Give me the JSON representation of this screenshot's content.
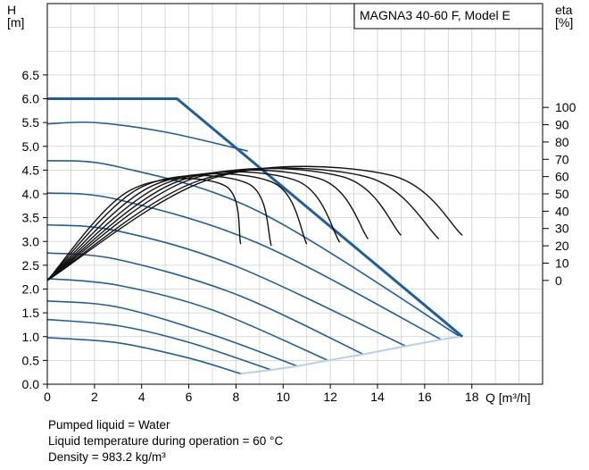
{
  "chart_data": {
    "type": "line",
    "title": "MAGNA3 40-60 F, Model E",
    "xlabel": "Q [m³/h]",
    "ylabel": "H [m]",
    "y2label": "eta [%]",
    "xlim": [
      0,
      21
    ],
    "ylim": [
      0,
      8
    ],
    "y2lim": [
      -60,
      160
    ],
    "x_ticks": [
      "0",
      "2",
      "4",
      "6",
      "8",
      "10",
      "12",
      "14",
      "16",
      "18"
    ],
    "y_ticks": [
      "0.0",
      "0.5",
      "1.0",
      "1.5",
      "2.0",
      "2.5",
      "3.0",
      "3.5",
      "4.0",
      "4.5",
      "5.0",
      "5.5",
      "6.0",
      "6.5"
    ],
    "y2_ticks": [
      "0",
      "10",
      "20",
      "30",
      "40",
      "50",
      "60",
      "70",
      "80",
      "90",
      "100"
    ],
    "series": [
      {
        "kind": "max-curve",
        "points": [
          [
            0,
            6.0
          ],
          [
            5.5,
            6.0
          ],
          [
            17.6,
            1.0
          ]
        ]
      },
      {
        "kind": "qh",
        "points": [
          [
            0,
            0.98
          ],
          [
            3,
            0.87
          ],
          [
            6,
            0.55
          ],
          [
            8.2,
            0.22
          ]
        ]
      },
      {
        "kind": "qh",
        "points": [
          [
            0,
            1.36
          ],
          [
            3,
            1.23
          ],
          [
            6,
            0.88
          ],
          [
            9.5,
            0.3
          ]
        ]
      },
      {
        "kind": "qh",
        "points": [
          [
            0,
            1.75
          ],
          [
            3,
            1.62
          ],
          [
            7,
            1.04
          ],
          [
            10.6,
            0.38
          ]
        ]
      },
      {
        "kind": "qh",
        "points": [
          [
            0,
            2.22
          ],
          [
            3,
            2.08
          ],
          [
            7,
            1.56
          ],
          [
            11.9,
            0.5
          ]
        ]
      },
      {
        "kind": "qh",
        "points": [
          [
            0,
            2.76
          ],
          [
            3,
            2.62
          ],
          [
            8,
            1.89
          ],
          [
            13.4,
            0.63
          ]
        ]
      },
      {
        "kind": "qh",
        "points": [
          [
            0,
            3.35
          ],
          [
            3,
            3.22
          ],
          [
            8,
            2.48
          ],
          [
            15.2,
            0.8
          ]
        ]
      },
      {
        "kind": "qh",
        "points": [
          [
            0,
            4.02
          ],
          [
            3,
            3.88
          ],
          [
            9,
            2.95
          ],
          [
            16.7,
            0.94
          ]
        ]
      },
      {
        "kind": "qh",
        "points": [
          [
            0,
            4.7
          ],
          [
            3,
            4.57
          ],
          [
            9,
            3.62
          ],
          [
            17.5,
            1.0
          ]
        ]
      },
      {
        "kind": "qh",
        "points": [
          [
            0,
            5.47
          ],
          [
            2,
            5.5
          ],
          [
            5,
            5.3
          ],
          [
            8.5,
            4.9
          ]
        ]
      },
      {
        "kind": "min-curve",
        "points": [
          [
            8.2,
            0.22
          ],
          [
            9.5,
            0.3
          ],
          [
            10.6,
            0.38
          ],
          [
            11.9,
            0.5
          ],
          [
            13.4,
            0.63
          ],
          [
            15.2,
            0.8
          ],
          [
            16.7,
            0.94
          ],
          [
            17.5,
            1.0
          ]
        ]
      },
      {
        "kind": "eta",
        "points": [
          [
            0,
            0
          ],
          [
            3.5,
            52
          ],
          [
            7.5,
            55
          ],
          [
            8.2,
            21
          ]
        ]
      },
      {
        "kind": "eta",
        "points": [
          [
            0,
            0
          ],
          [
            4,
            54
          ],
          [
            8.5,
            56
          ],
          [
            9.5,
            20
          ]
        ]
      },
      {
        "kind": "eta",
        "points": [
          [
            0,
            0
          ],
          [
            4.5,
            55
          ],
          [
            9.5,
            57
          ],
          [
            11,
            21
          ]
        ]
      },
      {
        "kind": "eta",
        "points": [
          [
            0,
            0
          ],
          [
            5,
            56
          ],
          [
            10.5,
            58
          ],
          [
            12.4,
            22
          ]
        ]
      },
      {
        "kind": "eta",
        "points": [
          [
            0,
            0
          ],
          [
            5.5,
            57
          ],
          [
            11.5,
            59
          ],
          [
            13.6,
            24
          ]
        ]
      },
      {
        "kind": "eta",
        "points": [
          [
            0,
            0
          ],
          [
            6,
            58
          ],
          [
            12.5,
            60
          ],
          [
            15,
            26
          ]
        ]
      },
      {
        "kind": "eta",
        "points": [
          [
            0,
            0
          ],
          [
            6.5,
            58
          ],
          [
            13.5,
            60
          ],
          [
            16.6,
            24
          ]
        ]
      },
      {
        "kind": "eta",
        "points": [
          [
            0,
            0
          ],
          [
            7,
            59
          ],
          [
            14.5,
            61
          ],
          [
            17.6,
            26
          ]
        ]
      }
    ]
  },
  "notes": {
    "line1": "Pumped liquid = Water",
    "line2": "Liquid temperature during operation = 60 °C",
    "line3": "Density = 983.2 kg/m³"
  }
}
